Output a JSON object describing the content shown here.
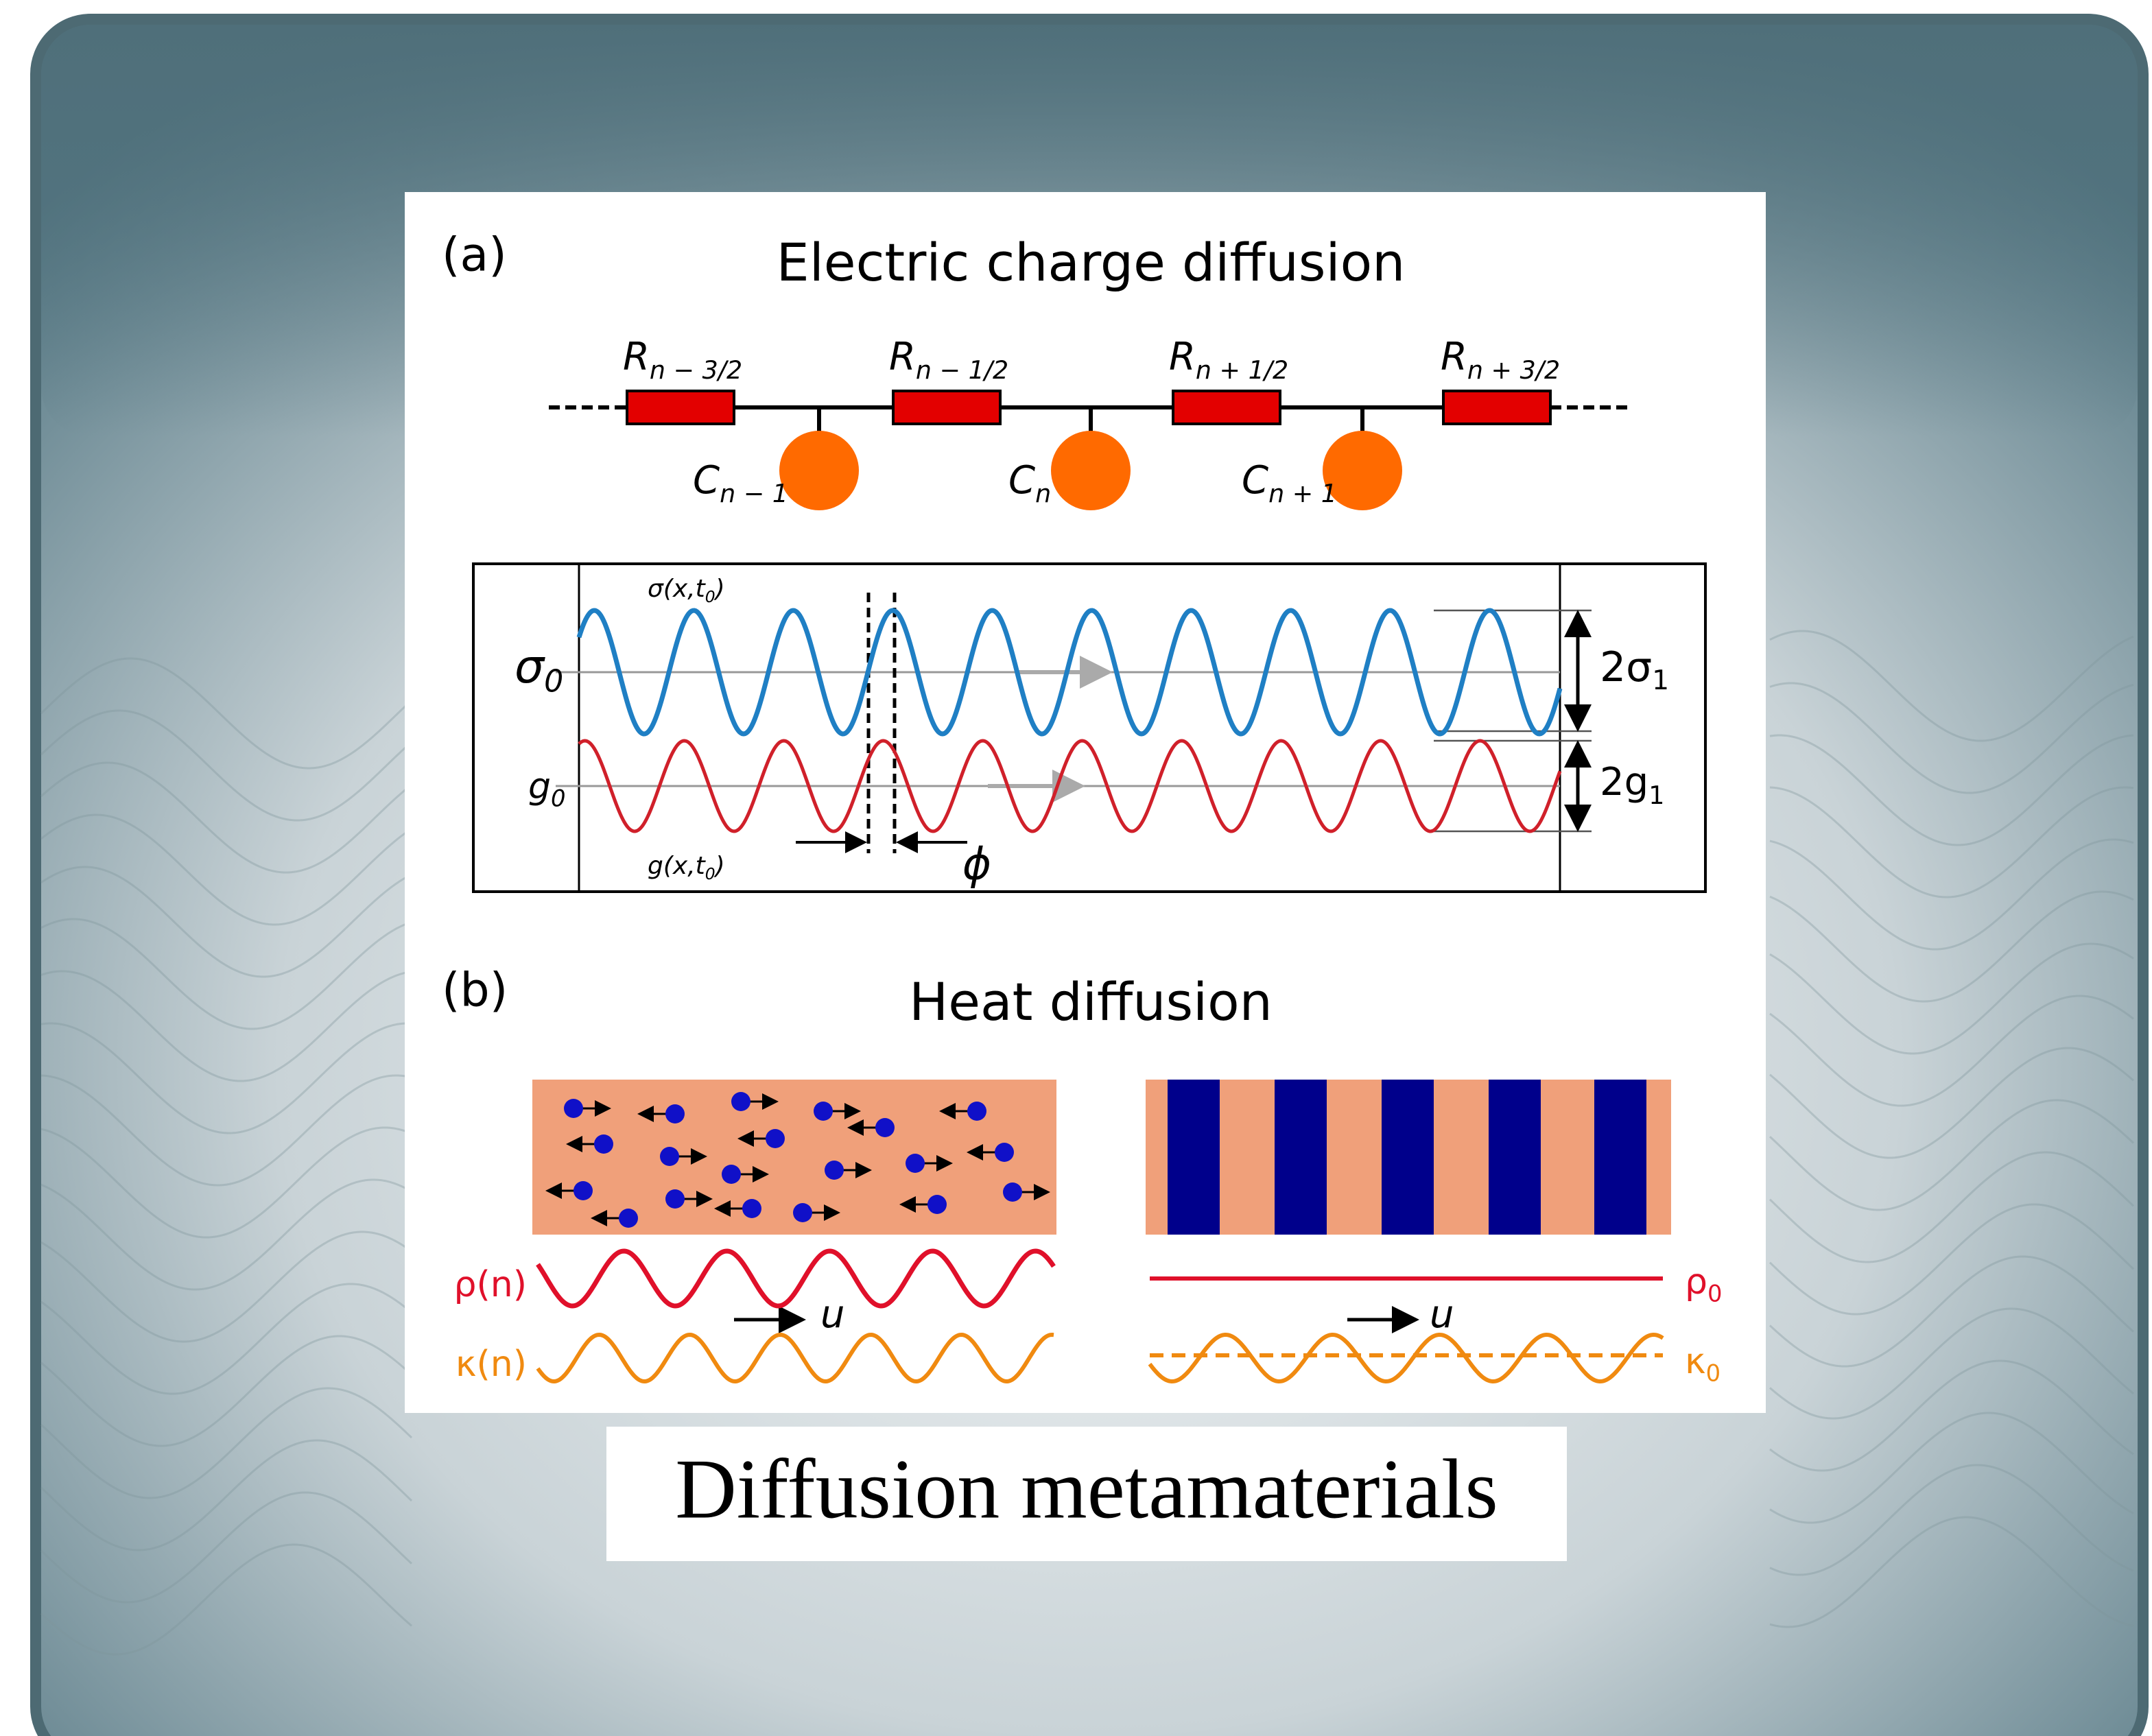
{
  "panel_a": {
    "label": "(a)",
    "title": "Electric charge diffusion",
    "resistors": [
      {
        "prefix": "R",
        "sub": "n − 3/2"
      },
      {
        "prefix": "R",
        "sub": "n − 1/2"
      },
      {
        "prefix": "R",
        "sub": "n + 1/2"
      },
      {
        "prefix": "R",
        "sub": "n + 3/2"
      }
    ],
    "capacitors": [
      {
        "prefix": "C",
        "sub": "n − 1"
      },
      {
        "prefix": "C",
        "sub": "n"
      },
      {
        "prefix": "C",
        "sub": "n + 1"
      }
    ],
    "sigma_function": {
      "prefix": "σ(x,t",
      "sub": "0",
      "suffix": ")"
    },
    "sigma_mean": {
      "prefix": "σ",
      "sub": "0"
    },
    "g_function": {
      "prefix": "g(x,t",
      "sub": "0",
      "suffix": ")"
    },
    "g_mean": {
      "prefix": "g",
      "sub": "0"
    },
    "sigma_amplitude": {
      "prefix": "2σ",
      "sub": "1"
    },
    "g_amplitude": {
      "prefix": "2g",
      "sub": "1"
    },
    "phase": "ϕ"
  },
  "panel_b": {
    "label": "(b)",
    "title": "Heat diffusion",
    "density": {
      "prefix": "ρ(n)"
    },
    "conductivity": {
      "prefix": "κ(n)"
    },
    "velocity_left": "u",
    "velocity_right": "u",
    "density_const": {
      "prefix": "ρ",
      "sub": "0"
    },
    "conductivity_const": {
      "prefix": "κ",
      "sub": "0"
    }
  },
  "caption": "Diffusion metamaterials"
}
